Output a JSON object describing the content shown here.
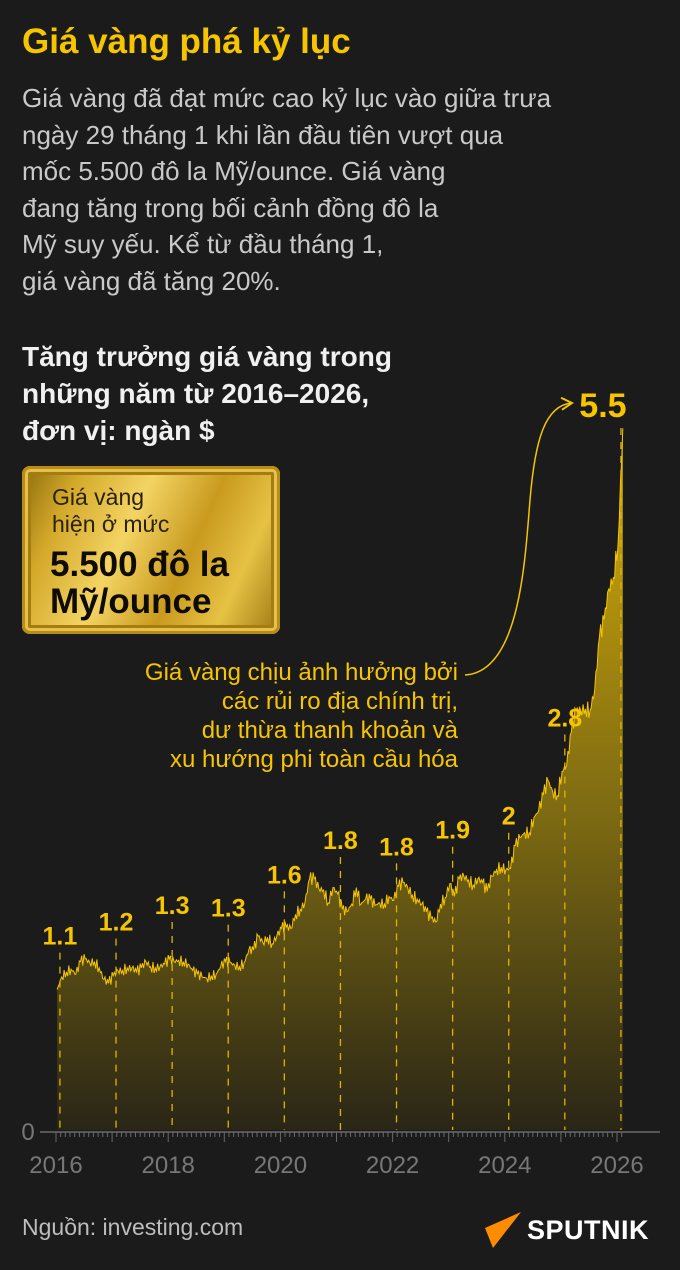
{
  "title": "Giá vàng phá kỷ lục",
  "intro": "Giá vàng đã đạt mức cao kỷ lục vào giữa trưa\nngày 29 tháng 1 khi lần đầu tiên vượt qua\nmốc 5.500 đô la Mỹ/ounce. Giá vàng\nđang tăng trong bối cảnh đồng đô la\nMỹ suy yếu. Kể từ đầu tháng 1,\ngiá vàng đã tăng 20%.",
  "gold_bar": {
    "line1": "Giá vàng\nhiện ở mức",
    "line2": "5.500 đô la\nMỹ/ounce"
  },
  "annotation": "Giá vàng chịu ảnh hưởng bởi\ncác rủi ro địa chính trị,\ndư thừa thanh khoản và\nxu hướng phi toàn cầu hóa",
  "source": "Nguồn: investing.com",
  "logo": "SPUTNIK",
  "colors": {
    "accent": "#f6c500",
    "background": "#1b1b1b",
    "logo_orange": "#ff8c00"
  },
  "chart_data": {
    "type": "area",
    "title": "Tăng trưởng giá vàng trong\nnhững năm từ 2016–2026,\nđơn vị: ngàn $",
    "xlim": [
      2016,
      2026.5
    ],
    "ylim": [
      0,
      5.5
    ],
    "x_ticks": [
      "2016",
      "2018",
      "2020",
      "2022",
      "2024",
      "2026"
    ],
    "y_ticks": [
      "0"
    ],
    "grid": false,
    "start": "2016-01",
    "monthly_values": [
      1.1,
      1.2,
      1.24,
      1.26,
      1.22,
      1.32,
      1.34,
      1.31,
      1.32,
      1.27,
      1.18,
      1.15,
      1.21,
      1.25,
      1.25,
      1.27,
      1.27,
      1.24,
      1.27,
      1.32,
      1.28,
      1.27,
      1.28,
      1.3,
      1.34,
      1.32,
      1.33,
      1.32,
      1.3,
      1.25,
      1.22,
      1.2,
      1.19,
      1.21,
      1.22,
      1.28,
      1.32,
      1.31,
      1.29,
      1.28,
      1.31,
      1.41,
      1.41,
      1.52,
      1.47,
      1.51,
      1.46,
      1.52,
      1.58,
      1.59,
      1.58,
      1.69,
      1.73,
      1.78,
      1.97,
      1.97,
      1.89,
      1.88,
      1.78,
      1.9,
      1.85,
      1.73,
      1.71,
      1.77,
      1.9,
      1.77,
      1.81,
      1.81,
      1.76,
      1.78,
      1.77,
      1.83,
      1.8,
      1.91,
      1.94,
      1.9,
      1.84,
      1.81,
      1.77,
      1.71,
      1.66,
      1.63,
      1.77,
      1.82,
      1.93,
      1.83,
      1.97,
      1.99,
      1.96,
      1.92,
      1.97,
      1.94,
      1.87,
      1.99,
      2.04,
      2.06,
      2.04,
      2.05,
      2.23,
      2.29,
      2.33,
      2.33,
      2.45,
      2.5,
      2.63,
      2.74,
      2.65,
      2.62,
      2.81,
      2.86,
      3.12,
      3.29,
      3.29,
      3.3,
      3.29,
      3.45,
      3.86,
      4.0,
      4.24,
      4.33,
      4.6,
      5.5
    ],
    "year_labels": [
      {
        "year": 2016,
        "label": "1.1"
      },
      {
        "year": 2017,
        "label": "1.2"
      },
      {
        "year": 2018,
        "label": "1.3"
      },
      {
        "year": 2019,
        "label": "1.3"
      },
      {
        "year": 2020,
        "label": "1.6"
      },
      {
        "year": 2021,
        "label": "1.8"
      },
      {
        "year": 2022,
        "label": "1.8"
      },
      {
        "year": 2023,
        "label": "1.9"
      },
      {
        "year": 2024,
        "label": "2"
      },
      {
        "year": 2025,
        "label": "2.8"
      },
      {
        "year": 2026,
        "label": "5.5"
      }
    ]
  }
}
